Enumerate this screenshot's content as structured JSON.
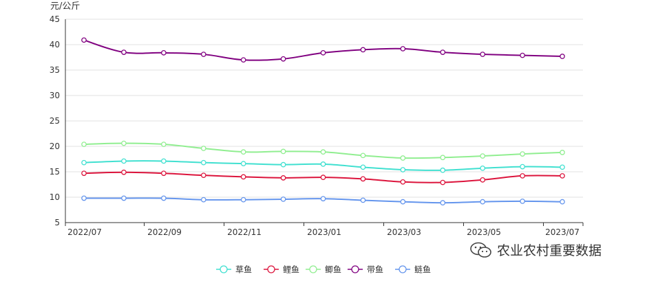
{
  "watermark": {
    "text": "农业农村重要数据"
  },
  "chart_data": {
    "type": "line",
    "ylabel": "元/公斤",
    "ylim": [
      5,
      45
    ],
    "yticks": [
      5,
      10,
      15,
      20,
      25,
      30,
      35,
      40,
      45
    ],
    "x": [
      "2022/07",
      "2022/08",
      "2022/09",
      "2022/10",
      "2022/11",
      "2022/12",
      "2023/01",
      "2023/02",
      "2023/03",
      "2023/04",
      "2023/05",
      "2023/06",
      "2023/07"
    ],
    "xtick_labels": [
      "2022/07",
      "2022/09",
      "2022/11",
      "2023/01",
      "2023/03",
      "2023/05",
      "2023/07"
    ],
    "grid": true,
    "legend": "bottom-center",
    "series": [
      {
        "name": "草鱼",
        "color": "#40e0d0",
        "values": [
          16.8,
          17.1,
          17.1,
          16.8,
          16.6,
          16.4,
          16.5,
          15.9,
          15.4,
          15.3,
          15.7,
          16.0,
          15.9
        ]
      },
      {
        "name": "鲤鱼",
        "color": "#dc143c",
        "values": [
          14.7,
          14.9,
          14.7,
          14.3,
          14.0,
          13.8,
          13.9,
          13.6,
          13.0,
          12.9,
          13.4,
          14.2,
          14.2
        ]
      },
      {
        "name": "鲫鱼",
        "color": "#90ee90",
        "values": [
          20.4,
          20.6,
          20.4,
          19.6,
          18.9,
          19.0,
          18.9,
          18.2,
          17.7,
          17.8,
          18.1,
          18.5,
          18.8
        ]
      },
      {
        "name": "带鱼",
        "color": "#800080",
        "values": [
          40.9,
          38.5,
          38.4,
          38.1,
          37.0,
          37.2,
          38.4,
          39.0,
          39.2,
          38.5,
          38.1,
          37.9,
          37.7
        ]
      },
      {
        "name": "鲢鱼",
        "color": "#6495ed",
        "values": [
          9.8,
          9.8,
          9.8,
          9.5,
          9.5,
          9.6,
          9.7,
          9.4,
          9.1,
          8.9,
          9.1,
          9.2,
          9.1
        ]
      }
    ]
  }
}
